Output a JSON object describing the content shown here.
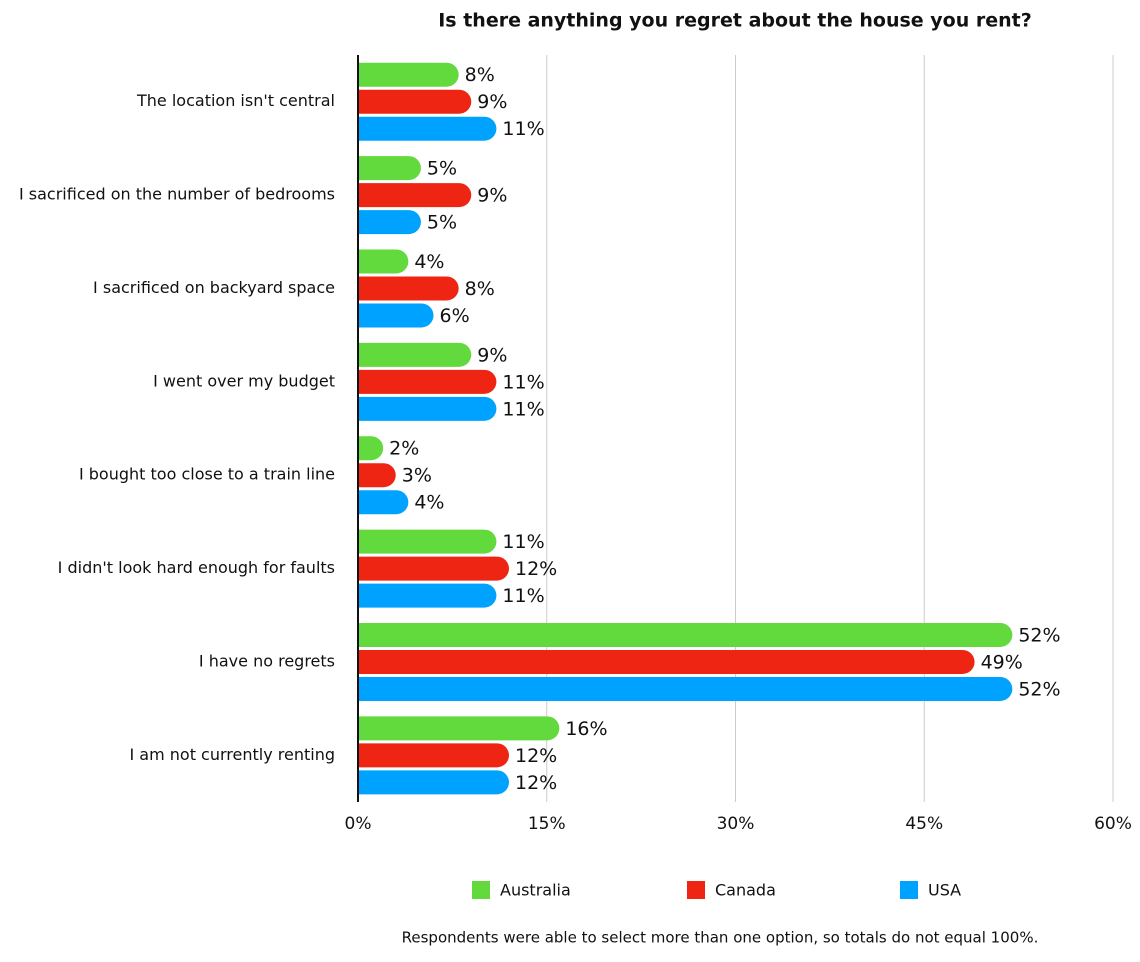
{
  "chart_data": {
    "type": "bar",
    "orientation": "horizontal",
    "title": "Is there anything you regret about the house you rent?",
    "categories": [
      "The location isn't central",
      "I sacrificed on the number of bedrooms",
      "I sacrificed on backyard space",
      "I went over my budget",
      "I bought too close to a train line",
      "I didn't look hard enough for faults",
      "I have no regrets",
      "I am not currently renting"
    ],
    "series": [
      {
        "name": "Australia",
        "color": "#62d93c",
        "values": [
          8,
          5,
          4,
          9,
          2,
          11,
          52,
          16
        ],
        "value_labels": [
          "8%",
          "5%",
          "4%",
          "9%",
          "2%",
          "11%",
          "52%",
          "16%"
        ]
      },
      {
        "name": "Canada",
        "color": "#ee2512",
        "values": [
          9,
          9,
          8,
          11,
          3,
          12,
          49,
          12
        ],
        "value_labels": [
          "9%",
          "9%",
          "8%",
          "11%",
          "3%",
          "12%",
          "49%",
          "12%"
        ]
      },
      {
        "name": "USA",
        "color": "#00a2ff",
        "values": [
          11,
          5,
          6,
          11,
          4,
          11,
          52,
          12
        ],
        "value_labels": [
          "11%",
          "5%",
          "6%",
          "11%",
          "4%",
          "11%",
          "52%",
          "12%"
        ]
      }
    ],
    "xlim": [
      0,
      60
    ],
    "xticks": [
      {
        "value": 0,
        "label": "0%"
      },
      {
        "value": 15,
        "label": "15%"
      },
      {
        "value": 30,
        "label": "30%"
      },
      {
        "value": 45,
        "label": "45%"
      },
      {
        "value": 60,
        "label": "60%"
      }
    ],
    "grid": true,
    "legend": "bottom",
    "note": "Respondents were able to select more than one option, so totals do not equal 100%."
  }
}
